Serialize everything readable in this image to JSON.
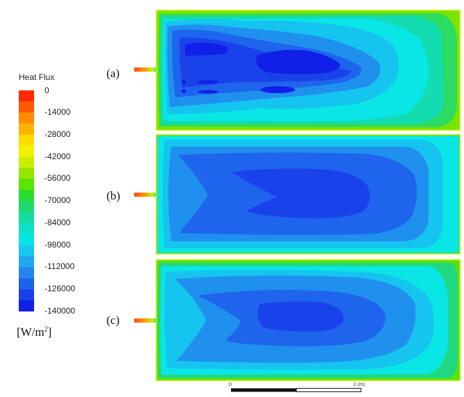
{
  "legend": {
    "title": "Heat Flux",
    "ticks": [
      "0",
      "-14000",
      "-28000",
      "-42000",
      "-56000",
      "-70000",
      "-84000",
      "-98000",
      "-112000",
      "-126000",
      "-140000"
    ],
    "unit_base": "[W/m",
    "unit_exp": "2",
    "unit_close": "]",
    "colors": [
      "#ff2a00",
      "#ff5a00",
      "#ff8c00",
      "#ffb400",
      "#ffdc00",
      "#f2f200",
      "#c8f000",
      "#96e600",
      "#5ae400",
      "#2adc30",
      "#1ed870",
      "#16dca0",
      "#10e0c8",
      "#06e6e6",
      "#18c8f0",
      "#20a8f0",
      "#2286ee",
      "#1e62ec",
      "#1a40ea",
      "#1020e8"
    ]
  },
  "panels": [
    {
      "label": "(a)"
    },
    {
      "label": "(b)"
    },
    {
      "label": "(c)"
    }
  ],
  "scale": {
    "start": "0",
    "end": "2 (m)"
  }
}
